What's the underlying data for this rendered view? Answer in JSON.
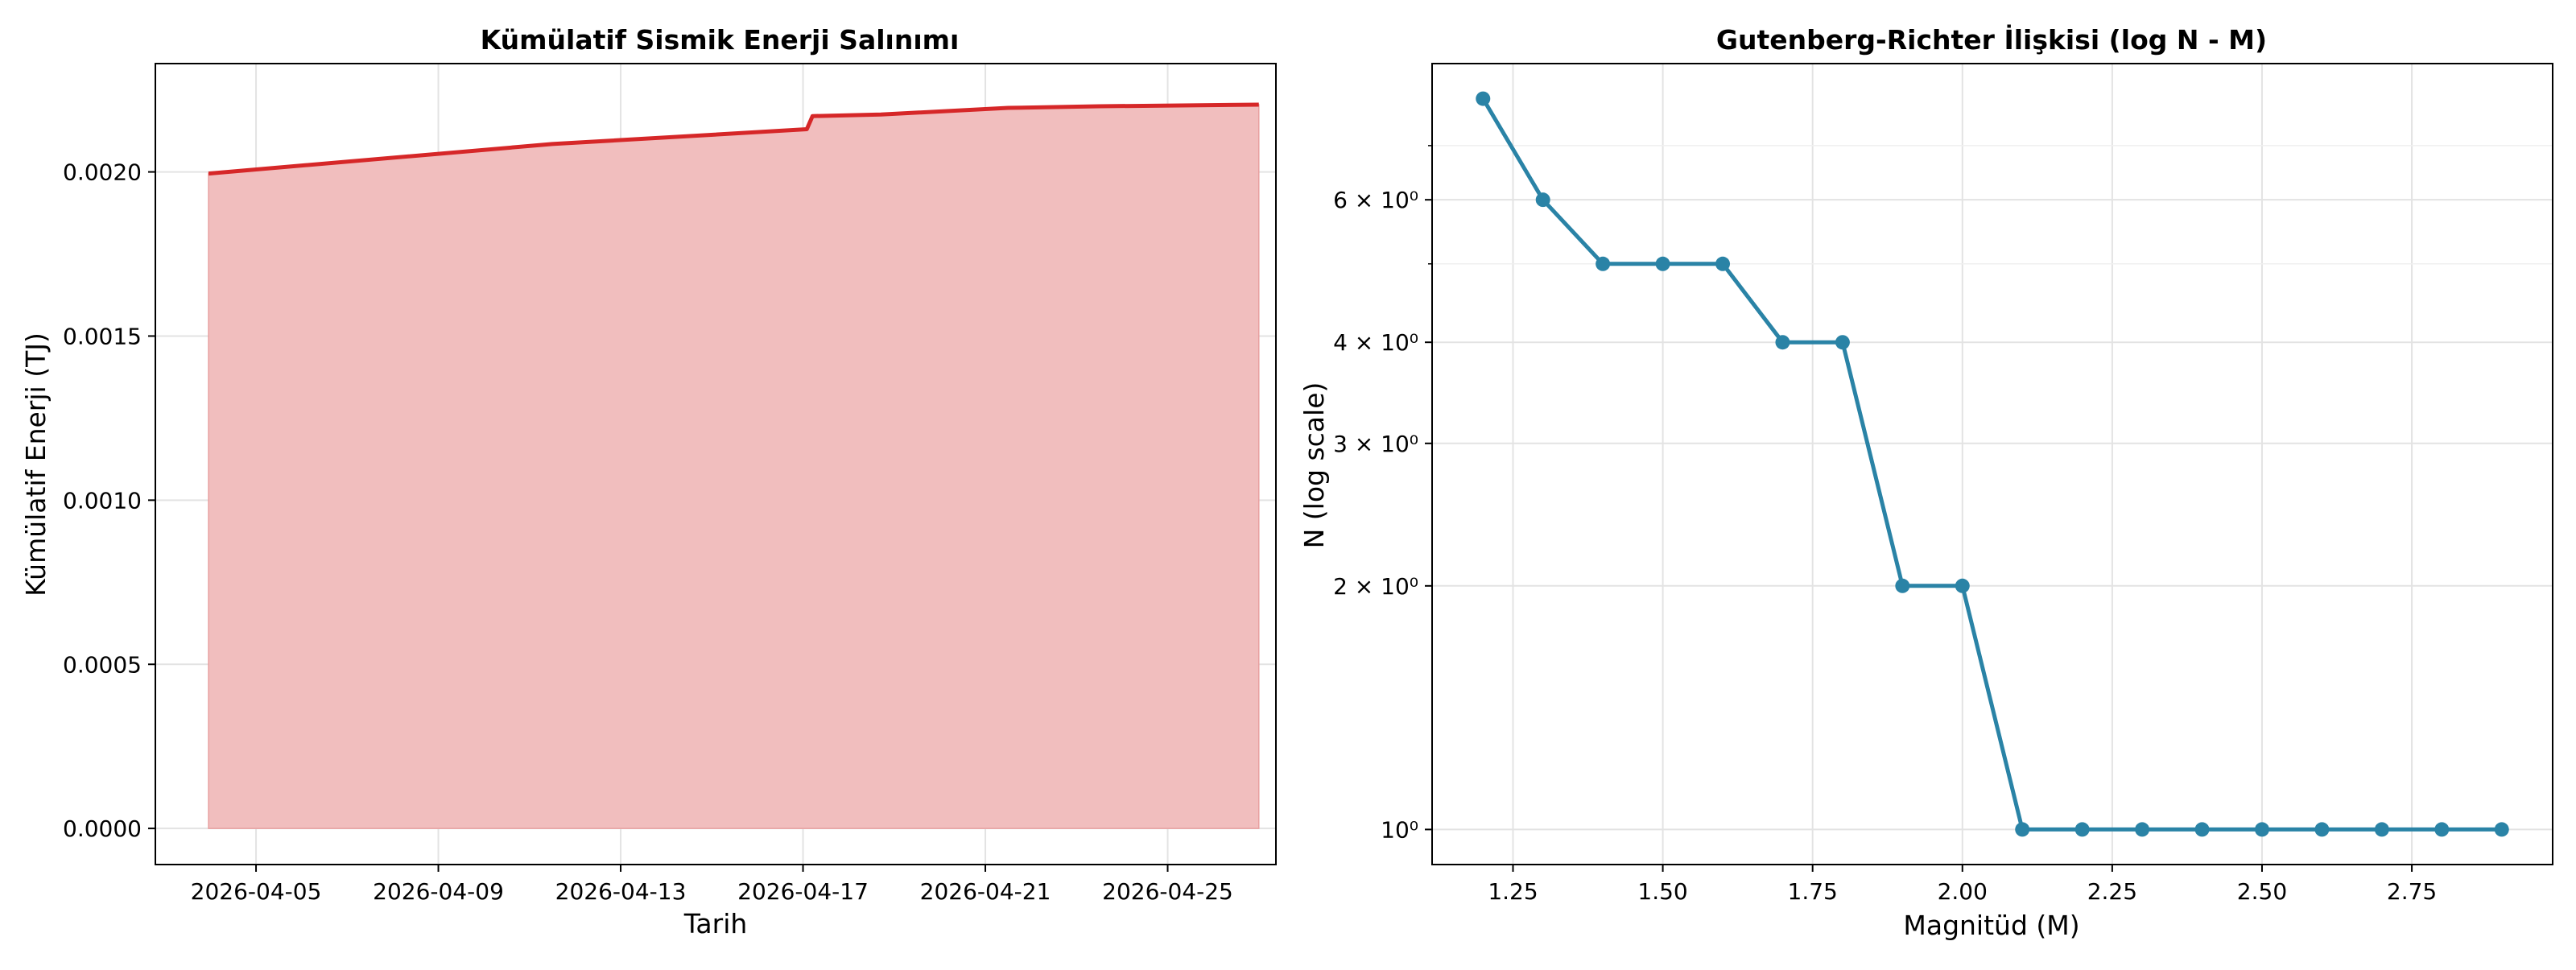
{
  "chart_data": [
    {
      "type": "area",
      "title": "Kümülatif Sismik Enerji Salınımı",
      "xlabel": "Tarih",
      "ylabel": "Kümülatif Enerji (TJ)",
      "x_tick_labels": [
        "2026-04-05",
        "2026-04-09",
        "2026-04-13",
        "2026-04-17",
        "2026-04-21",
        "2026-04-25"
      ],
      "x_tick_dates": [
        "2026-04-05",
        "2026-04-09",
        "2026-04-13",
        "2026-04-17",
        "2026-04-21",
        "2026-04-25"
      ],
      "y_tick_labels": [
        "0.0000",
        "0.0005",
        "0.0010",
        "0.0015",
        "0.0020"
      ],
      "y_ticks": [
        0.0,
        0.0005,
        0.001,
        0.0015,
        0.002
      ],
      "ylim": [
        -0.00011,
        0.00233
      ],
      "xlim": [
        "2026-04-02 19:00",
        "2026-04-27 09:00"
      ],
      "grid": true,
      "series": [
        {
          "x": [
            "2026-04-03 23:00",
            "2026-04-11 12:00",
            "2026-04-17 02:00",
            "2026-04-17 05:00",
            "2026-04-18 17:00",
            "2026-04-21 12:00",
            "2026-04-23 12:00",
            "2026-04-27 00:00"
          ],
          "y": [
            0.001995,
            0.002085,
            0.00213,
            0.00217,
            0.002175,
            0.002195,
            0.0022,
            0.002205
          ],
          "color": "#d62728",
          "fill_color": "#f1bebe"
        }
      ]
    },
    {
      "type": "line",
      "title": "Gutenberg-Richter İlişkisi (log N - M)",
      "xlabel": "Magnitüd (M)",
      "ylabel": "N (log scale)",
      "y_scale": "log",
      "x_ticks": [
        1.25,
        1.5,
        1.75,
        2.0,
        2.25,
        2.5,
        2.75
      ],
      "x_tick_labels": [
        "1.25",
        "1.50",
        "1.75",
        "2.00",
        "2.25",
        "2.50",
        "2.75"
      ],
      "y_ticks": [
        1,
        2,
        3,
        4,
        6
      ],
      "y_tick_labels": [
        {
          "base": "10⁰",
          "prefix": ""
        },
        {
          "base": "10⁰",
          "prefix": "2 × "
        },
        {
          "base": "10⁰",
          "prefix": "3 × "
        },
        {
          "base": "10⁰",
          "prefix": "4 × "
        },
        {
          "base": "10⁰",
          "prefix": "6 × "
        }
      ],
      "y_minor_ticks": [
        5,
        7
      ],
      "xlim": [
        1.115,
        2.985
      ],
      "ylim": [
        0.905,
        8.84
      ],
      "grid": true,
      "series": [
        {
          "x": [
            1.2,
            1.3,
            1.4,
            1.5,
            1.6,
            1.7,
            1.8,
            1.9,
            2.0,
            2.1,
            2.2,
            2.3,
            2.4,
            2.5,
            2.6,
            2.7,
            2.8,
            2.9
          ],
          "y": [
            8,
            6,
            5,
            5,
            5,
            4,
            4,
            2,
            2,
            1,
            1,
            1,
            1,
            1,
            1,
            1,
            1,
            1
          ],
          "color": "#2a83a6"
        }
      ]
    }
  ]
}
